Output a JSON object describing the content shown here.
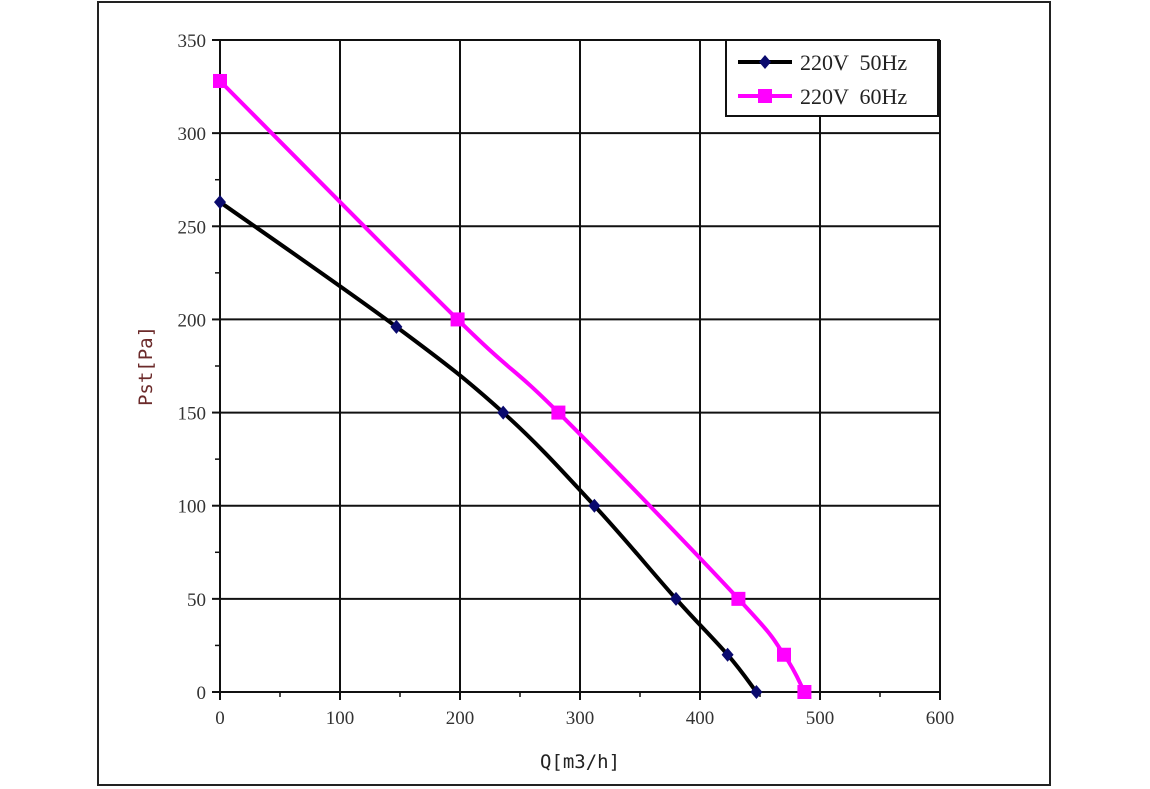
{
  "chart_data": {
    "type": "line",
    "title": "",
    "xlabel": "Q[m3/h]",
    "ylabel": "Pst[Pa]",
    "xlim": [
      0,
      600
    ],
    "ylim": [
      0,
      350
    ],
    "xticks": [
      0,
      100,
      200,
      300,
      400,
      500,
      600
    ],
    "yticks": [
      0,
      50,
      100,
      150,
      200,
      250,
      300,
      350
    ],
    "grid": true,
    "legend_position": "top-right",
    "series": [
      {
        "name": "220V  50Hz",
        "color": "#000000",
        "marker_color": "#0a0a6e",
        "marker": "diamond",
        "x": [
          0,
          147,
          236,
          312,
          380,
          423,
          447
        ],
        "y": [
          263,
          196,
          150,
          100,
          50,
          20,
          0
        ]
      },
      {
        "name": "220V  60Hz",
        "color": "#ff00ff",
        "marker_color": "#ff00ff",
        "marker": "square",
        "x": [
          0,
          198,
          282,
          432,
          470,
          487
        ],
        "y": [
          328,
          200,
          150,
          50,
          20,
          0
        ]
      }
    ]
  }
}
